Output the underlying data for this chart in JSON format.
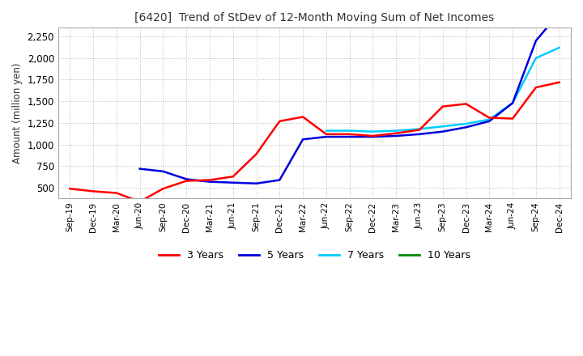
{
  "title": "[6420]  Trend of StDev of 12-Month Moving Sum of Net Incomes",
  "ylabel": "Amount (million yen)",
  "yticks": [
    500,
    750,
    1000,
    1250,
    1500,
    1750,
    2000,
    2250
  ],
  "ylim": [
    380,
    2350
  ],
  "background_color": "#ffffff",
  "grid_color": "#bbbbbb",
  "legend": [
    "3 Years",
    "5 Years",
    "7 Years",
    "10 Years"
  ],
  "legend_colors": [
    "#ff0000",
    "#0000dd",
    "#00ccff",
    "#008800"
  ],
  "x_labels": [
    "Sep-19",
    "Dec-19",
    "Mar-20",
    "Jun-20",
    "Sep-20",
    "Dec-20",
    "Mar-21",
    "Jun-21",
    "Sep-21",
    "Dec-21",
    "Mar-22",
    "Jun-22",
    "Sep-22",
    "Dec-22",
    "Mar-23",
    "Jun-23",
    "Sep-23",
    "Dec-23",
    "Mar-24",
    "Jun-24",
    "Sep-24",
    "Dec-24"
  ],
  "series_3y": [
    490,
    460,
    440,
    340,
    490,
    580,
    590,
    630,
    890,
    1270,
    1320,
    1120,
    1120,
    1100,
    1130,
    1170,
    1440,
    1470,
    1310,
    1300,
    1660,
    1720
  ],
  "series_5y": [
    null,
    null,
    null,
    720,
    690,
    600,
    570,
    560,
    550,
    590,
    1060,
    1090,
    1090,
    1090,
    1100,
    1120,
    1150,
    1200,
    1270,
    1480,
    2200,
    2520
  ],
  "series_7y": [
    null,
    null,
    null,
    null,
    null,
    null,
    null,
    null,
    null,
    null,
    null,
    1160,
    1160,
    1150,
    1160,
    1180,
    1210,
    1240,
    1290,
    1480,
    2000,
    2120
  ],
  "series_10y": [
    null,
    null,
    null,
    null,
    null,
    null,
    null,
    null,
    null,
    null,
    null,
    null,
    null,
    null,
    null,
    null,
    null,
    null,
    null,
    null,
    null,
    null
  ]
}
